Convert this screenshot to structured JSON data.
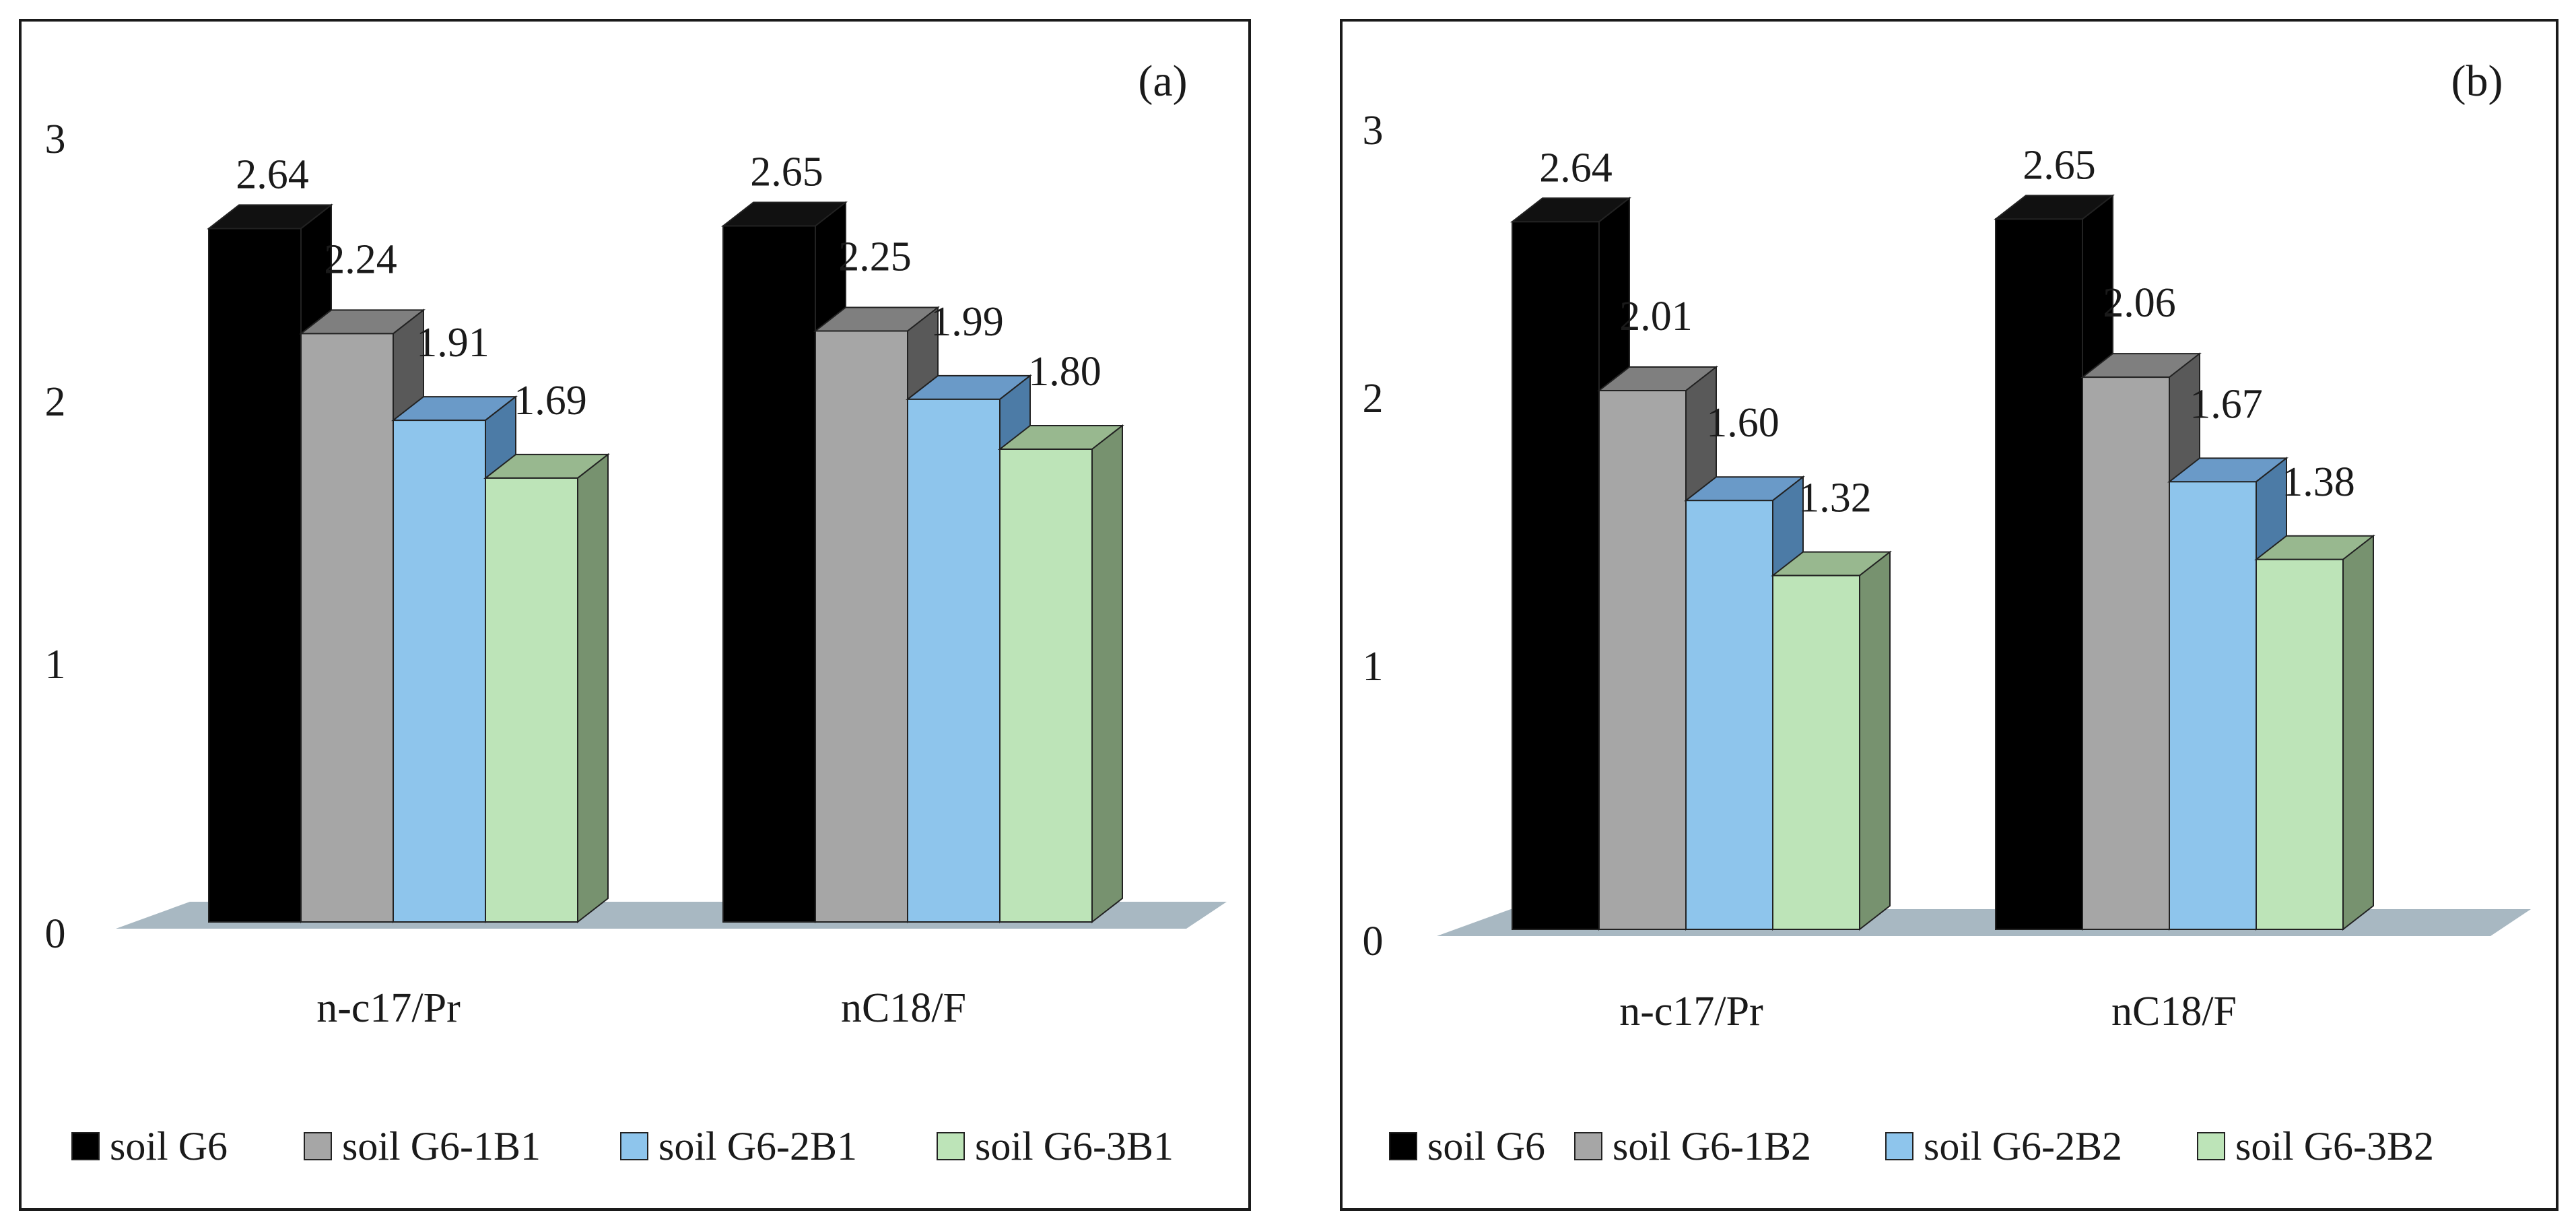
{
  "chart_data": [
    {
      "type": "bar",
      "panel_label": "(a)",
      "categories": [
        "n-c17/Pr",
        "nC18/F"
      ],
      "series": [
        {
          "name": "soil G6",
          "values": [
            2.64,
            2.65
          ],
          "labels": [
            "2.64",
            "2.65"
          ]
        },
        {
          "name": "soil G6-1B1",
          "values": [
            2.24,
            2.25
          ],
          "labels": [
            "2.24",
            "2.25"
          ]
        },
        {
          "name": "soil G6-2B1",
          "values": [
            1.91,
            1.99
          ],
          "labels": [
            "1.91",
            "1.99"
          ]
        },
        {
          "name": "soil G6-3B1",
          "values": [
            1.69,
            1.8
          ],
          "labels": [
            "1.69",
            "1.80"
          ]
        }
      ],
      "yticks": [
        "0",
        "1",
        "2",
        "3"
      ],
      "ylim": [
        0,
        3
      ],
      "legend": "bottom",
      "grid": false
    },
    {
      "type": "bar",
      "panel_label": "(b)",
      "categories": [
        "n-c17/Pr",
        "nC18/F"
      ],
      "series": [
        {
          "name": "soil G6",
          "values": [
            2.64,
            2.65
          ],
          "labels": [
            "2.64",
            "2.65"
          ]
        },
        {
          "name": "soil G6-1B2",
          "values": [
            2.01,
            2.06
          ],
          "labels": [
            "2.01",
            "2.06"
          ]
        },
        {
          "name": "soil G6-2B2",
          "values": [
            1.6,
            1.67
          ],
          "labels": [
            "1.60",
            "1.67"
          ]
        },
        {
          "name": "soil G6-3B2",
          "values": [
            1.32,
            1.38
          ],
          "labels": [
            "1.32",
            "1.38"
          ]
        }
      ],
      "yticks": [
        "0",
        "1",
        "2",
        "3"
      ],
      "ylim": [
        0,
        3
      ],
      "legend": "bottom",
      "grid": false
    }
  ],
  "colors": {
    "series_front": [
      "#000000",
      "#a6a6a6",
      "#8ec5ec",
      "#bde4b8"
    ],
    "series_side": [
      "#000000",
      "#595959",
      "#4c7ba6",
      "#77926f"
    ],
    "series_top": [
      "#111111",
      "#7f7f7f",
      "#6a9ac8",
      "#98b88f"
    ],
    "floor": "#a8b8c2"
  }
}
